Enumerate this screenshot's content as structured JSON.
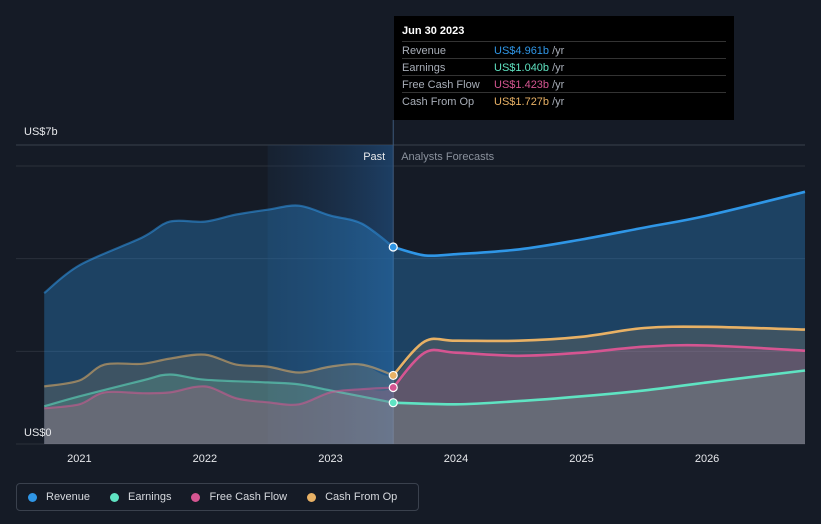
{
  "chart_data": {
    "type": "area",
    "title": "",
    "y_axis_top_label": "US$7b",
    "y_axis_bottom_label": "US$0",
    "ylim": [
      0,
      7
    ],
    "x_ticks": [
      {
        "label": "2021",
        "x": 2021.0
      },
      {
        "label": "2022",
        "x": 2022.0
      },
      {
        "label": "2023",
        "x": 2023.0
      },
      {
        "label": "2024",
        "x": 2024.0
      },
      {
        "label": "2025",
        "x": 2025.0
      },
      {
        "label": "2026",
        "x": 2026.0
      }
    ],
    "xlim": [
      2020.5,
      2026.78
    ],
    "past_label": "Past",
    "forecast_label": "Analysts Forecasts",
    "divider_x": 2023.5,
    "highlight_start_x": 2022.5,
    "series": [
      {
        "name": "Revenue",
        "color": "#2f96e6",
        "points": [
          [
            2020.72,
            3.8
          ],
          [
            2021.0,
            4.5
          ],
          [
            2021.5,
            5.2
          ],
          [
            2021.72,
            5.6
          ],
          [
            2022.0,
            5.6
          ],
          [
            2022.25,
            5.78
          ],
          [
            2022.5,
            5.9
          ],
          [
            2022.75,
            6.0
          ],
          [
            2023.0,
            5.75
          ],
          [
            2023.25,
            5.55
          ],
          [
            2023.5,
            4.96
          ],
          [
            2023.75,
            4.75
          ],
          [
            2024.0,
            4.78
          ],
          [
            2024.5,
            4.9
          ],
          [
            2025.0,
            5.15
          ],
          [
            2025.5,
            5.45
          ],
          [
            2026.0,
            5.75
          ],
          [
            2026.78,
            6.35
          ]
        ],
        "past_end": 10,
        "marker_x": 2023.5,
        "marker_y": 4.961
      },
      {
        "name": "Earnings",
        "color": "#5fe3c2",
        "points": [
          [
            2020.72,
            0.95
          ],
          [
            2021.0,
            1.2
          ],
          [
            2021.5,
            1.6
          ],
          [
            2021.72,
            1.75
          ],
          [
            2022.0,
            1.62
          ],
          [
            2022.5,
            1.55
          ],
          [
            2022.75,
            1.5
          ],
          [
            2023.0,
            1.35
          ],
          [
            2023.5,
            1.04
          ],
          [
            2024.0,
            1.0
          ],
          [
            2024.5,
            1.08
          ],
          [
            2025.0,
            1.2
          ],
          [
            2025.5,
            1.35
          ],
          [
            2026.0,
            1.55
          ],
          [
            2026.78,
            1.85
          ]
        ],
        "past_end": 8,
        "marker_x": 2023.5,
        "marker_y": 1.04
      },
      {
        "name": "Free Cash Flow",
        "color": "#d55591",
        "points": [
          [
            2020.72,
            0.9
          ],
          [
            2021.0,
            1.0
          ],
          [
            2021.2,
            1.3
          ],
          [
            2021.5,
            1.28
          ],
          [
            2021.72,
            1.3
          ],
          [
            2022.0,
            1.45
          ],
          [
            2022.25,
            1.15
          ],
          [
            2022.5,
            1.05
          ],
          [
            2022.75,
            1.0
          ],
          [
            2023.0,
            1.3
          ],
          [
            2023.25,
            1.38
          ],
          [
            2023.5,
            1.42
          ],
          [
            2023.75,
            2.3
          ],
          [
            2024.0,
            2.3
          ],
          [
            2024.5,
            2.22
          ],
          [
            2025.0,
            2.3
          ],
          [
            2025.5,
            2.45
          ],
          [
            2026.0,
            2.48
          ],
          [
            2026.78,
            2.35
          ]
        ],
        "past_end": 11,
        "marker_x": 2023.5,
        "marker_y": 1.423
      },
      {
        "name": "Cash From Op",
        "color": "#e8b165",
        "points": [
          [
            2020.72,
            1.45
          ],
          [
            2021.0,
            1.6
          ],
          [
            2021.2,
            2.0
          ],
          [
            2021.5,
            2.02
          ],
          [
            2021.72,
            2.15
          ],
          [
            2022.0,
            2.25
          ],
          [
            2022.25,
            2.0
          ],
          [
            2022.5,
            1.95
          ],
          [
            2022.75,
            1.8
          ],
          [
            2023.0,
            1.95
          ],
          [
            2023.25,
            2.0
          ],
          [
            2023.5,
            1.73
          ],
          [
            2023.75,
            2.58
          ],
          [
            2024.0,
            2.6
          ],
          [
            2024.5,
            2.6
          ],
          [
            2025.0,
            2.7
          ],
          [
            2025.5,
            2.92
          ],
          [
            2026.0,
            2.95
          ],
          [
            2026.78,
            2.88
          ]
        ],
        "past_end": 11,
        "marker_x": 2023.5,
        "marker_y": 1.727
      }
    ]
  },
  "tooltip": {
    "date": "Jun 30 2023",
    "rows": [
      {
        "label": "Revenue",
        "value": "US$4.961b",
        "unit": "/yr",
        "color": "#2f96e6"
      },
      {
        "label": "Earnings",
        "value": "US$1.040b",
        "unit": "/yr",
        "color": "#5fe3c2"
      },
      {
        "label": "Free Cash Flow",
        "value": "US$1.423b",
        "unit": "/yr",
        "color": "#d55591"
      },
      {
        "label": "Cash From Op",
        "value": "US$1.727b",
        "unit": "/yr",
        "color": "#e8b165"
      }
    ]
  },
  "legend": [
    {
      "label": "Revenue",
      "color": "#2f96e6"
    },
    {
      "label": "Earnings",
      "color": "#5fe3c2"
    },
    {
      "label": "Free Cash Flow",
      "color": "#d55591"
    },
    {
      "label": "Cash From Op",
      "color": "#e8b165"
    }
  ]
}
